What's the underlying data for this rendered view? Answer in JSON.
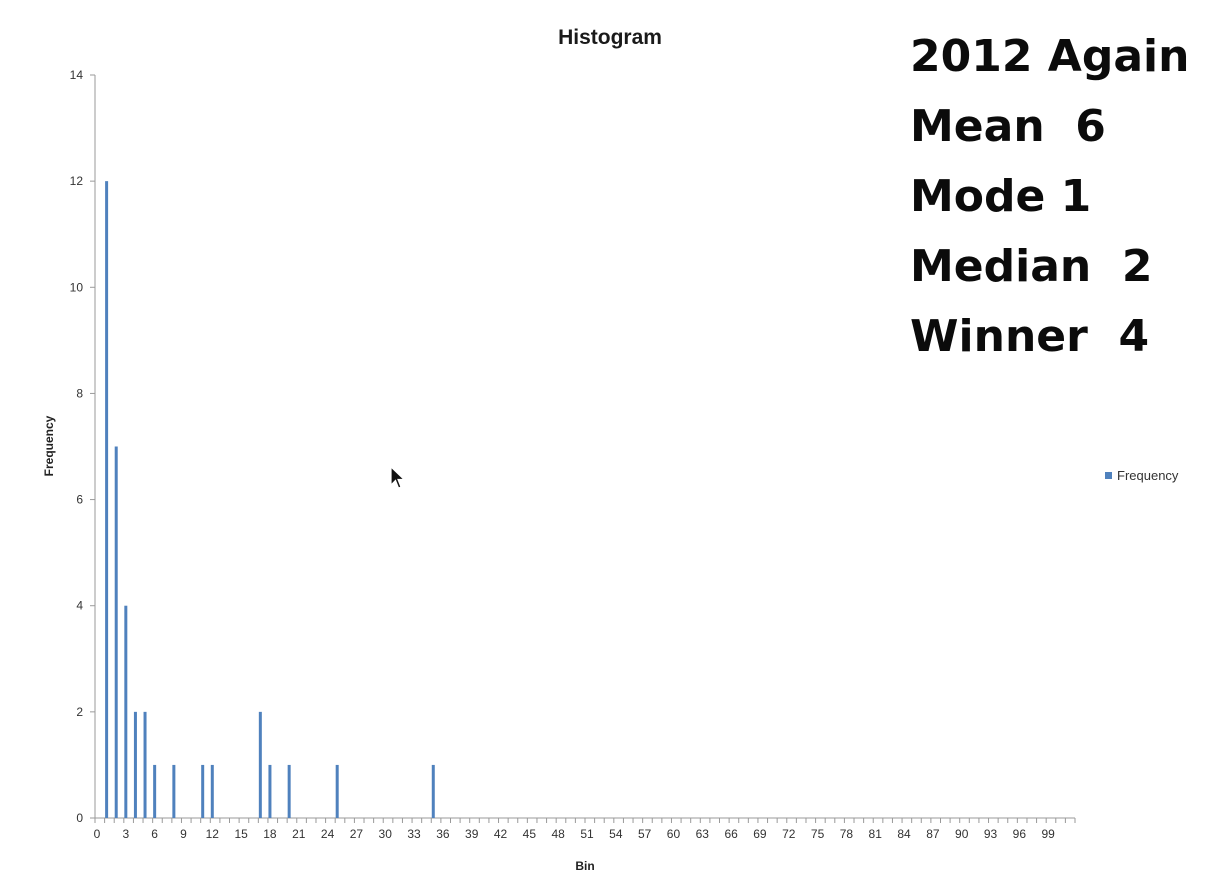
{
  "chart_data": {
    "type": "bar",
    "title": "Histogram",
    "xlabel": "Bin",
    "ylabel": "Frequency",
    "ylim": [
      0,
      14
    ],
    "yticks": [
      0,
      2,
      4,
      6,
      8,
      10,
      12,
      14
    ],
    "xlim": [
      0,
      102
    ],
    "xticks": [
      0,
      3,
      6,
      9,
      12,
      15,
      18,
      21,
      24,
      27,
      30,
      33,
      36,
      39,
      42,
      45,
      48,
      51,
      54,
      57,
      60,
      63,
      66,
      69,
      72,
      75,
      78,
      81,
      84,
      87,
      90,
      93,
      96,
      99
    ],
    "legend": {
      "position": "right",
      "entries": [
        "Frequency"
      ]
    },
    "series": [
      {
        "name": "Frequency",
        "color": "#4f81bd",
        "points": [
          {
            "x": 1,
            "y": 12
          },
          {
            "x": 2,
            "y": 7
          },
          {
            "x": 3,
            "y": 4
          },
          {
            "x": 4,
            "y": 2
          },
          {
            "x": 5,
            "y": 2
          },
          {
            "x": 6,
            "y": 1
          },
          {
            "x": 8,
            "y": 1
          },
          {
            "x": 11,
            "y": 1
          },
          {
            "x": 12,
            "y": 1
          },
          {
            "x": 17,
            "y": 2
          },
          {
            "x": 18,
            "y": 1
          },
          {
            "x": 20,
            "y": 1
          },
          {
            "x": 25,
            "y": 1
          },
          {
            "x": 35,
            "y": 1
          }
        ]
      }
    ]
  },
  "stats": [
    "2012 Again",
    "Mean  6",
    "Mode 1",
    "Median  2",
    "Winner  4"
  ],
  "cursor_icon": "arrow-cursor-icon"
}
